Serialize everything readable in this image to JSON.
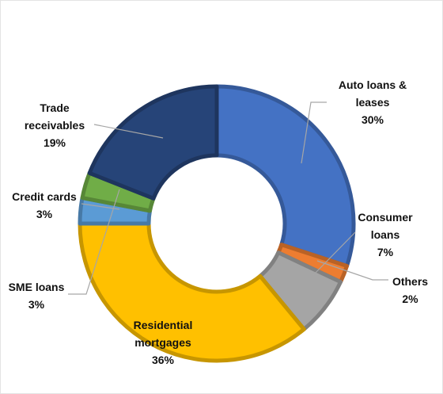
{
  "chart_data": {
    "type": "donut",
    "categories": [
      "Auto loans & leases",
      "Others",
      "Consumer loans",
      "Residential mortgages",
      "Credit cards",
      "SME loans",
      "Trade receivables"
    ],
    "values": [
      30,
      2,
      7,
      36,
      3,
      3,
      19
    ],
    "value_labels": [
      "30%",
      "2%",
      "7%",
      "36%",
      "3%",
      "3%",
      "19%"
    ],
    "colors": [
      "#4472c4",
      "#ed7d31",
      "#a5a5a5",
      "#ffc000",
      "#5b9bd5",
      "#70ad47",
      "#264478"
    ]
  }
}
